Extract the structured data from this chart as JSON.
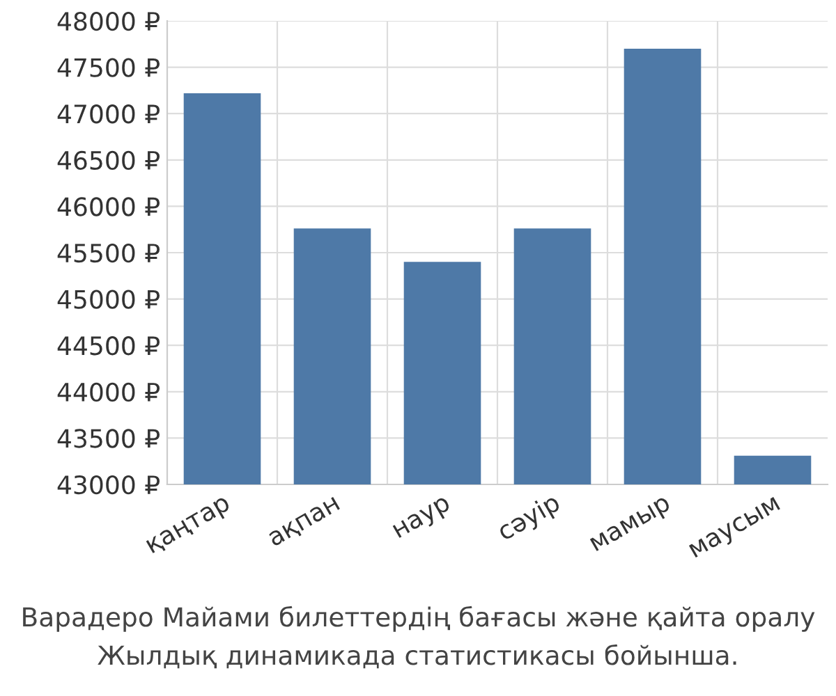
{
  "chart_data": {
    "type": "bar",
    "categories": [
      "қаңтар",
      "ақпан",
      "наур",
      "сәуір",
      "мамыр",
      "маусым"
    ],
    "values": [
      47220,
      45760,
      45400,
      45760,
      47700,
      43310
    ],
    "color": "#4e79a7",
    "ylim": [
      43000,
      48000
    ],
    "yticks": [
      {
        "value": 43000,
        "label": "43000 ₽"
      },
      {
        "value": 43500,
        "label": "43500 ₽"
      },
      {
        "value": 44000,
        "label": "44000 ₽"
      },
      {
        "value": 44500,
        "label": "44500 ₽"
      },
      {
        "value": 45000,
        "label": "45000 ₽"
      },
      {
        "value": 45500,
        "label": "45500 ₽"
      },
      {
        "value": 46000,
        "label": "46000 ₽"
      },
      {
        "value": 46500,
        "label": "46500 ₽"
      },
      {
        "value": 47000,
        "label": "47000 ₽"
      },
      {
        "value": 47500,
        "label": "47500 ₽"
      },
      {
        "value": 48000,
        "label": "48000 ₽"
      }
    ],
    "grid": true,
    "annotations": [
      "Варадеро Майами билеттердің бағасы және қайта оралу",
      "Жылдық динамикада статистикасы бойынша."
    ]
  }
}
